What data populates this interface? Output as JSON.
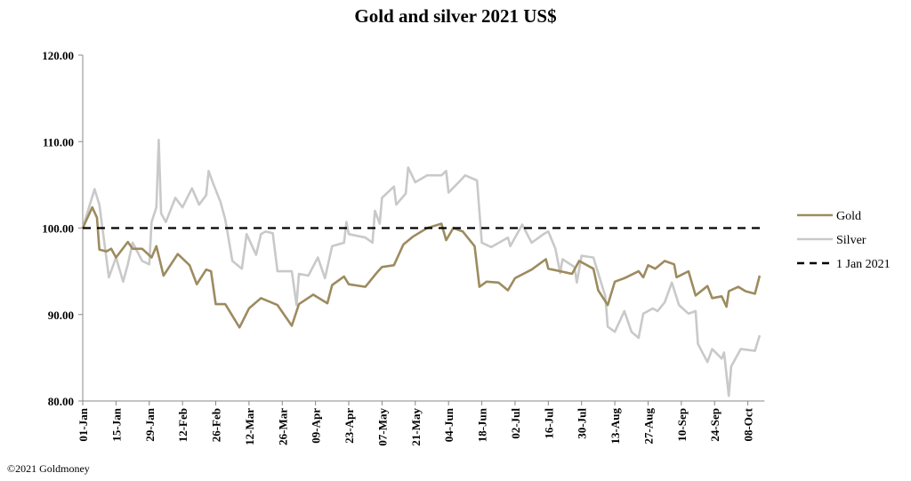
{
  "chart_data": {
    "type": "line",
    "title": "Gold and silver 2021  US$",
    "xlabel": "",
    "ylabel": "",
    "x_unit": "days since 01-Jan-2021",
    "ylim": [
      80,
      120
    ],
    "yticks": [
      "80.00",
      "90.00",
      "100.00",
      "110.00",
      "120.00"
    ],
    "ytick_values": [
      80,
      90,
      100,
      110,
      120
    ],
    "xtick_labels": [
      "01-Jan",
      "15-Jan",
      "29-Jan",
      "12-Feb",
      "26-Feb",
      "12-Mar",
      "26-Mar",
      "09-Apr",
      "23-Apr",
      "07-May",
      "21-May",
      "04-Jun",
      "18-Jun",
      "02-Jul",
      "16-Jul",
      "30-Jul",
      "13-Aug",
      "27-Aug",
      "10-Sep",
      "24-Sep",
      "08-Oct"
    ],
    "xtick_step_days": 14,
    "xlim": [
      0,
      287
    ],
    "grid": false,
    "legend_position": "right",
    "series": [
      {
        "name": "Gold",
        "color": "#9d8b5f",
        "style": "solid",
        "points": [
          [
            0,
            100.0
          ],
          [
            4,
            102.4
          ],
          [
            6,
            101.2
          ],
          [
            7,
            97.5
          ],
          [
            10,
            97.3
          ],
          [
            12,
            97.6
          ],
          [
            14,
            96.6
          ],
          [
            19,
            98.4
          ],
          [
            21,
            97.6
          ],
          [
            25,
            97.6
          ],
          [
            29,
            96.6
          ],
          [
            31,
            97.9
          ],
          [
            34,
            94.5
          ],
          [
            40,
            97.0
          ],
          [
            45,
            95.7
          ],
          [
            48,
            93.5
          ],
          [
            52,
            95.2
          ],
          [
            54,
            95.0
          ],
          [
            56,
            91.2
          ],
          [
            60,
            91.2
          ],
          [
            66,
            88.5
          ],
          [
            70,
            90.7
          ],
          [
            75,
            91.9
          ],
          [
            82,
            91.1
          ],
          [
            88,
            88.7
          ],
          [
            91,
            91.2
          ],
          [
            97,
            92.3
          ],
          [
            103,
            91.3
          ],
          [
            105,
            93.4
          ],
          [
            110,
            94.4
          ],
          [
            112,
            93.5
          ],
          [
            119,
            93.2
          ],
          [
            124,
            94.9
          ],
          [
            126,
            95.5
          ],
          [
            131,
            95.7
          ],
          [
            135,
            98.1
          ],
          [
            139,
            99.0
          ],
          [
            145,
            100.0
          ],
          [
            151,
            100.5
          ],
          [
            153,
            98.6
          ],
          [
            156,
            100.0
          ],
          [
            160,
            99.6
          ],
          [
            165,
            97.9
          ],
          [
            167,
            93.2
          ],
          [
            170,
            93.8
          ],
          [
            175,
            93.7
          ],
          [
            179,
            92.8
          ],
          [
            182,
            94.2
          ],
          [
            189,
            95.2
          ],
          [
            195,
            96.4
          ],
          [
            196,
            95.3
          ],
          [
            206,
            94.7
          ],
          [
            209,
            96.2
          ],
          [
            215,
            95.3
          ],
          [
            217,
            92.8
          ],
          [
            221,
            91.1
          ],
          [
            224,
            93.8
          ],
          [
            228,
            94.2
          ],
          [
            234,
            95.0
          ],
          [
            236,
            94.3
          ],
          [
            238,
            95.7
          ],
          [
            241,
            95.3
          ],
          [
            245,
            96.2
          ],
          [
            249,
            95.8
          ],
          [
            250,
            94.3
          ],
          [
            255,
            95.0
          ],
          [
            258,
            92.2
          ],
          [
            263,
            93.3
          ],
          [
            265,
            91.9
          ],
          [
            269,
            92.1
          ],
          [
            271,
            90.9
          ],
          [
            272,
            92.7
          ],
          [
            276,
            93.2
          ],
          [
            279,
            92.7
          ],
          [
            283,
            92.4
          ],
          [
            285,
            94.5
          ]
        ]
      },
      {
        "name": "Silver",
        "color": "#c9c9c9",
        "style": "solid",
        "points": [
          [
            0,
            100.0
          ],
          [
            5,
            104.5
          ],
          [
            7,
            102.7
          ],
          [
            11,
            94.3
          ],
          [
            14,
            96.6
          ],
          [
            17,
            93.8
          ],
          [
            19,
            95.8
          ],
          [
            21,
            98.3
          ],
          [
            25,
            96.2
          ],
          [
            28,
            95.8
          ],
          [
            29,
            100.7
          ],
          [
            31,
            102.4
          ],
          [
            32,
            110.2
          ],
          [
            33,
            101.7
          ],
          [
            35,
            100.7
          ],
          [
            39,
            103.5
          ],
          [
            42,
            102.4
          ],
          [
            46,
            104.6
          ],
          [
            49,
            102.7
          ],
          [
            52,
            103.8
          ],
          [
            53,
            106.6
          ],
          [
            55,
            105.1
          ],
          [
            58,
            103.0
          ],
          [
            60,
            101.0
          ],
          [
            63,
            96.2
          ],
          [
            67,
            95.3
          ],
          [
            69,
            99.3
          ],
          [
            73,
            96.9
          ],
          [
            75,
            99.3
          ],
          [
            77,
            99.6
          ],
          [
            80,
            99.4
          ],
          [
            82,
            95.0
          ],
          [
            88,
            95.0
          ],
          [
            90,
            91.1
          ],
          [
            91,
            94.7
          ],
          [
            95,
            94.5
          ],
          [
            99,
            96.6
          ],
          [
            102,
            94.2
          ],
          [
            105,
            97.9
          ],
          [
            110,
            98.3
          ],
          [
            111,
            100.7
          ],
          [
            112,
            99.3
          ],
          [
            119,
            98.9
          ],
          [
            122,
            98.3
          ],
          [
            123,
            102.0
          ],
          [
            125,
            100.5
          ],
          [
            126,
            103.5
          ],
          [
            131,
            104.8
          ],
          [
            132,
            102.7
          ],
          [
            136,
            104.0
          ],
          [
            137,
            107.0
          ],
          [
            140,
            105.3
          ],
          [
            145,
            106.1
          ],
          [
            151,
            106.1
          ],
          [
            153,
            106.6
          ],
          [
            154,
            104.1
          ],
          [
            159,
            105.5
          ],
          [
            161,
            106.1
          ],
          [
            166,
            105.5
          ],
          [
            168,
            98.3
          ],
          [
            172,
            97.8
          ],
          [
            179,
            98.9
          ],
          [
            180,
            97.9
          ],
          [
            185,
            100.4
          ],
          [
            189,
            98.3
          ],
          [
            194,
            99.3
          ],
          [
            196,
            99.6
          ],
          [
            199,
            97.6
          ],
          [
            201,
            94.8
          ],
          [
            202,
            96.4
          ],
          [
            207,
            95.5
          ],
          [
            208,
            93.7
          ],
          [
            210,
            96.8
          ],
          [
            215,
            96.6
          ],
          [
            220,
            92.1
          ],
          [
            221,
            88.6
          ],
          [
            224,
            88.0
          ],
          [
            228,
            90.4
          ],
          [
            231,
            88.0
          ],
          [
            234,
            87.3
          ],
          [
            236,
            90.1
          ],
          [
            240,
            90.7
          ],
          [
            242,
            90.4
          ],
          [
            245,
            91.4
          ],
          [
            248,
            93.7
          ],
          [
            251,
            91.1
          ],
          [
            255,
            90.1
          ],
          [
            258,
            90.4
          ],
          [
            259,
            86.6
          ],
          [
            263,
            84.5
          ],
          [
            265,
            86.0
          ],
          [
            269,
            84.9
          ],
          [
            270,
            85.6
          ],
          [
            272,
            80.6
          ],
          [
            273,
            84.0
          ],
          [
            277,
            86.0
          ],
          [
            283,
            85.8
          ],
          [
            285,
            87.6
          ]
        ]
      },
      {
        "name": "1 Jan 2021",
        "color": "#000000",
        "style": "dashed",
        "points": [
          [
            0,
            100.0
          ],
          [
            287,
            100.0
          ]
        ]
      }
    ]
  },
  "footer": "©2021 Goldmoney"
}
